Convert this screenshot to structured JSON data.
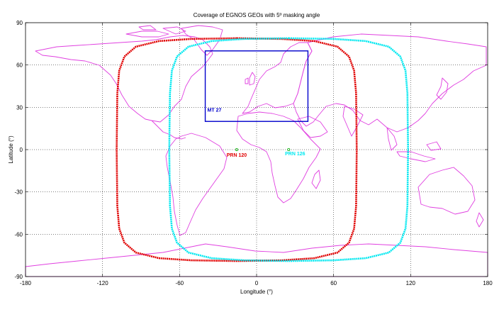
{
  "chart_data": {
    "type": "line",
    "title": "Coverage of EGNOS GEOs with 5º masking angle",
    "xlabel": "Longitude (°)",
    "ylabel": "Latitude (°)",
    "xlim": [
      -180,
      180
    ],
    "ylim": [
      -90,
      90
    ],
    "xticks": [
      -180,
      -120,
      -60,
      0,
      60,
      120,
      180
    ],
    "yticks": [
      -90,
      -60,
      -30,
      0,
      30,
      60,
      90
    ],
    "grid": true,
    "colors": {
      "coastline": "#e040e0",
      "prn120": "#e00000",
      "prn126": "#00e8f0",
      "mt27": "#0000cc",
      "prn_marker": "#00b000"
    },
    "series": [
      {
        "name": "PRN 120",
        "label": "PRN 120",
        "satellite_longitude": -15.5,
        "label_position": {
          "x": -15.5,
          "y": -5
        },
        "x": [
          -15.5,
          20,
          45,
          63,
          72,
          76,
          77.5,
          78,
          77.5,
          76,
          72,
          63,
          45,
          20,
          -15.5,
          -51,
          -76,
          -94,
          -103,
          -107,
          -108.5,
          -109,
          -108.5,
          -107,
          -103,
          -94,
          -76,
          -51,
          -15.5
        ],
        "y": [
          79,
          78.5,
          77,
          73,
          66,
          56,
          40,
          0,
          -40,
          -56,
          -66,
          -73,
          -77,
          -78.5,
          -79,
          -78.5,
          -77,
          -73,
          -66,
          -56,
          -40,
          0,
          40,
          56,
          66,
          73,
          77,
          78.5,
          79
        ]
      },
      {
        "name": "PRN 126",
        "label": "PRN 126",
        "satellite_longitude": 25,
        "label_position": {
          "x": 30,
          "y": -4
        },
        "x": [
          25,
          60,
          85,
          103,
          112,
          116,
          117.5,
          118,
          117.5,
          116,
          112,
          103,
          85,
          60,
          25,
          -10,
          -35,
          -53,
          -62,
          -66,
          -67.5,
          -68,
          -67.5,
          -66,
          -62,
          -53,
          -35,
          -10,
          25
        ],
        "y": [
          79,
          78.5,
          77,
          73,
          66,
          56,
          40,
          0,
          -40,
          -56,
          -66,
          -73,
          -77,
          -78.5,
          -79,
          -78.5,
          -77,
          -73,
          -66,
          -56,
          -40,
          0,
          40,
          56,
          66,
          73,
          77,
          78.5,
          79
        ]
      }
    ],
    "mt27_region": {
      "label": "MT 27",
      "lon": [
        -40,
        40
      ],
      "lat": [
        20,
        70
      ]
    }
  }
}
